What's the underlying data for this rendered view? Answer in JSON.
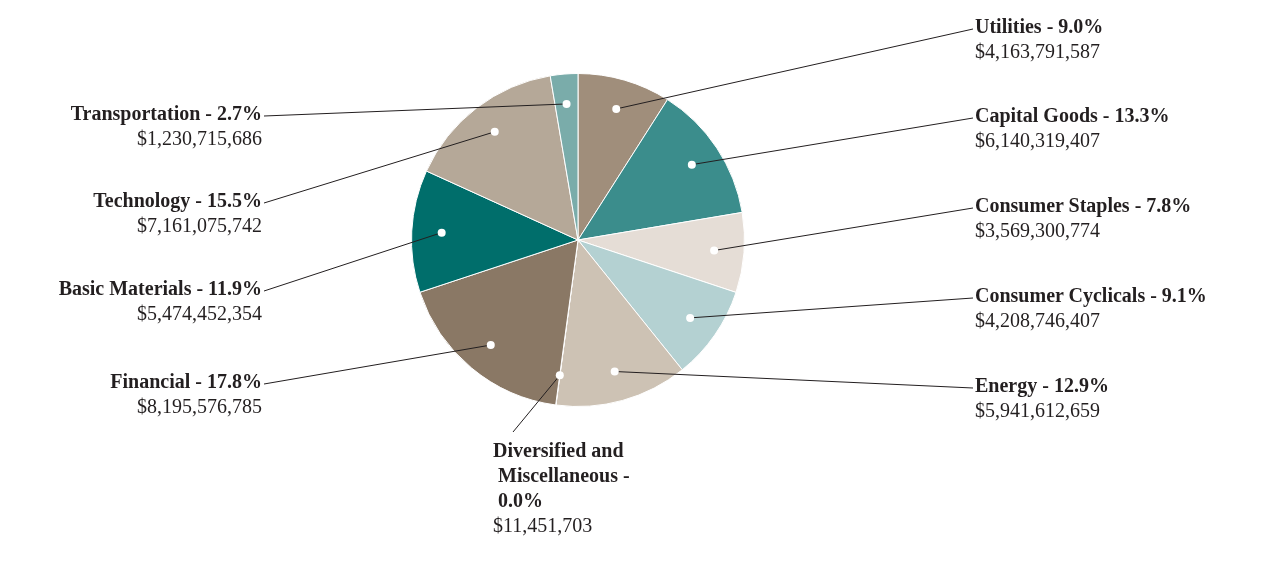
{
  "chart_data": {
    "type": "pie",
    "categories": [
      "Utilities - 9.0%",
      "Capital Goods - 13.3%",
      "Consumer Staples - 7.8%",
      "Consumer Cyclicals - 9.1%",
      "Energy - 12.9%",
      "Diversified and Miscellaneous - 0.0%",
      "Financial - 17.8%",
      "Basic Materials - 11.9%",
      "Technology - 15.5%",
      "Transportation - 2.7%"
    ],
    "values": [
      4163791587,
      6140319407,
      3569300774,
      4208746407,
      5941612659,
      11451703,
      8195576785,
      5474452354,
      7161075742,
      1230715686
    ],
    "value_labels": [
      "$4,163,791,587",
      "$6,140,319,407",
      "$3,569,300,774",
      "$4,208,746,407",
      "$5,941,612,659",
      "$11,451,703",
      "$8,195,576,785",
      "$5,474,452,354",
      "$7,161,075,742",
      "$1,230,715,686"
    ],
    "colors": [
      "#a08e7b",
      "#3b8d8c",
      "#e5ddd6",
      "#b4d1d2",
      "#cdc2b4",
      "#d8d0c6",
      "#8a7865",
      "#006e6b",
      "#b5a898",
      "#7aacaa"
    ],
    "legend": false
  }
}
